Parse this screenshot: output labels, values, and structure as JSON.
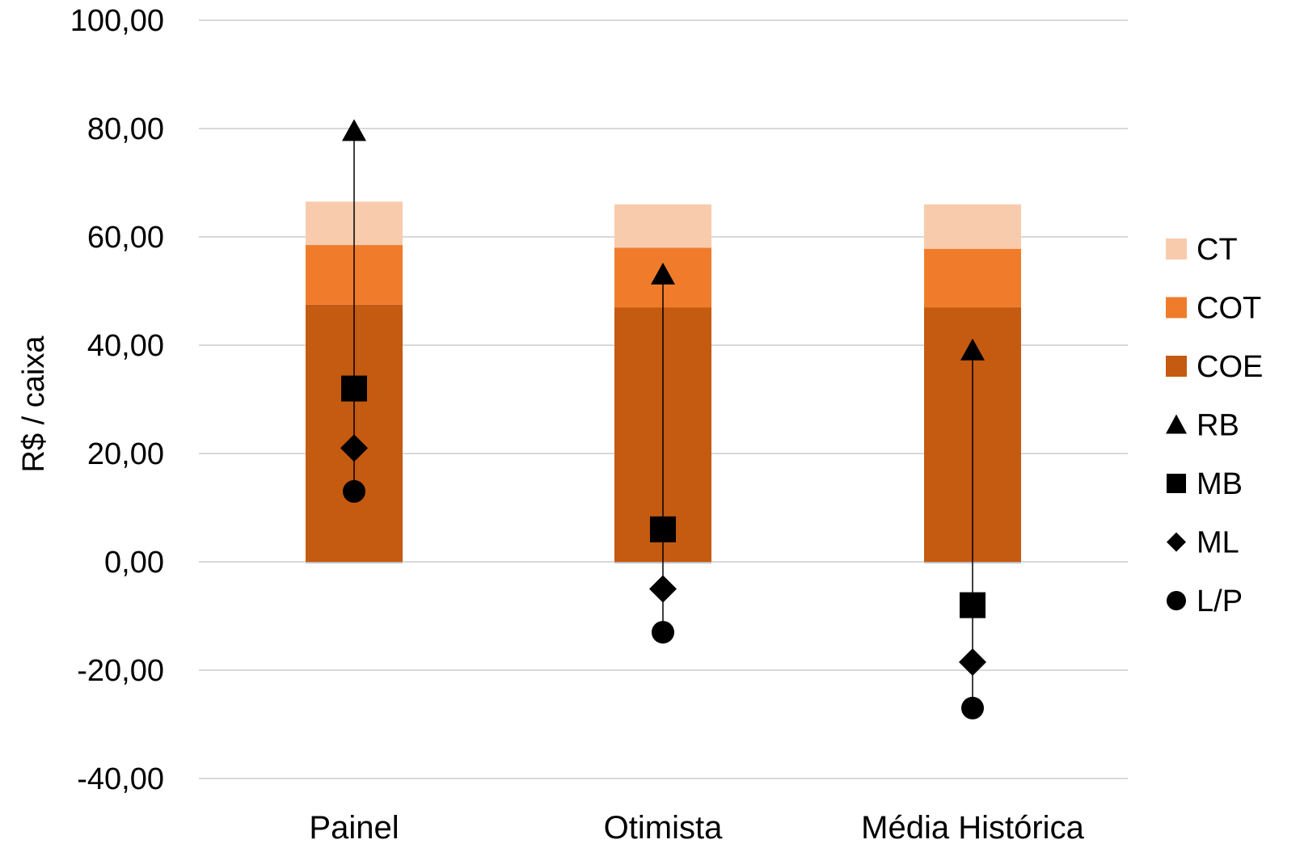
{
  "chart_data": {
    "type": "bar",
    "categories": [
      "Painel",
      "Otimista",
      "Média Histórica"
    ],
    "ylabel": "R$ / caixa",
    "xlabel": "",
    "ylim": [
      -40,
      100
    ],
    "yticks": [
      100,
      80,
      60,
      40,
      20,
      0,
      -20,
      -40
    ],
    "ytick_labels": [
      "100,00",
      "80,00",
      "60,00",
      "40,00",
      "20,00",
      "0,00",
      "-20,00",
      "-40,00"
    ],
    "grid": true,
    "legend_position": "right",
    "stacked_series": [
      {
        "name": "COE",
        "color": "#c55a11",
        "values": [
          47.5,
          47.0,
          47.0
        ]
      },
      {
        "name": "COT",
        "color": "#f07c2b",
        "values": [
          58.5,
          58.0,
          57.8
        ]
      },
      {
        "name": "CT",
        "color": "#f8cbad",
        "values": [
          66.5,
          66.0,
          66.0
        ]
      }
    ],
    "marker_series": [
      {
        "name": "RB",
        "marker": "triangle",
        "values": [
          79.5,
          53.0,
          39.0
        ]
      },
      {
        "name": "MB",
        "marker": "square",
        "values": [
          32.0,
          6.0,
          -8.0
        ]
      },
      {
        "name": "ML",
        "marker": "diamond",
        "values": [
          21.0,
          -5.0,
          -18.5
        ]
      },
      {
        "name": "L/P",
        "marker": "circle",
        "values": [
          13.0,
          -13.0,
          -27.0
        ]
      }
    ],
    "legend": [
      {
        "name": "CT",
        "symbol": "rect",
        "color": "#f8cbad"
      },
      {
        "name": "COT",
        "symbol": "rect",
        "color": "#f07c2b"
      },
      {
        "name": "COE",
        "symbol": "rect",
        "color": "#c55a11"
      },
      {
        "name": "RB",
        "symbol": "triangle",
        "color": "#000000"
      },
      {
        "name": "MB",
        "symbol": "square",
        "color": "#000000"
      },
      {
        "name": "ML",
        "symbol": "diamond",
        "color": "#000000"
      },
      {
        "name": "L/P",
        "symbol": "circle",
        "color": "#000000"
      }
    ]
  }
}
